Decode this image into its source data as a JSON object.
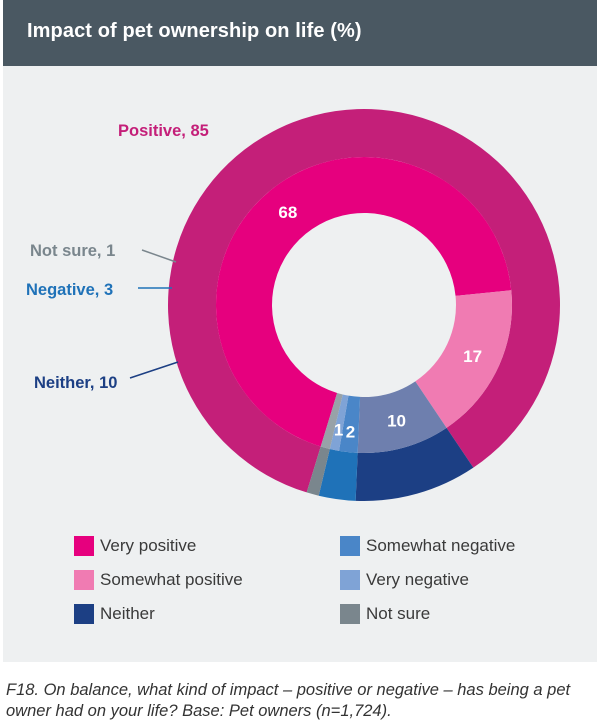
{
  "header": {
    "title": "Impact of pet ownership on life (%)"
  },
  "chart_data": {
    "type": "pie",
    "title": "Impact of pet ownership on life (%)",
    "outer_ring": [
      {
        "label": "Positive, 85",
        "name": "Positive",
        "value": 85,
        "color": "#c41f79"
      },
      {
        "label": "Neither, 10",
        "name": "Neither",
        "value": 10,
        "color": "#1c3f84"
      },
      {
        "label": "Negative, 3",
        "name": "Negative",
        "value": 3,
        "color": "#1f72b8"
      },
      {
        "label": "Not sure, 1",
        "name": "Not sure",
        "value": 1,
        "color": "#7a868d"
      }
    ],
    "inner_ring": [
      {
        "name": "Very positive",
        "value": 68,
        "label": "68",
        "color": "#e6007e"
      },
      {
        "name": "Somewhat positive",
        "value": 17,
        "label": "17",
        "color": "#f07bb2"
      },
      {
        "name": "Neither",
        "value": 10,
        "label": "10",
        "color": "#6e7fae"
      },
      {
        "name": "Somewhat negative",
        "value": 2,
        "label": "2",
        "color": "#4a86c8"
      },
      {
        "name": "Very negative",
        "value": 1,
        "label": "1",
        "color": "#7fa3d6"
      },
      {
        "name": "Not sure",
        "value": 1,
        "label": "",
        "color": "#98a2a8"
      }
    ],
    "label_colors": {
      "Positive": "#c41f79",
      "Neither": "#1c3f84",
      "Negative": "#1f72b8",
      "Not sure": "#7a868d"
    }
  },
  "legend": [
    {
      "label": "Very positive",
      "color": "#e6007e"
    },
    {
      "label": "Somewhat positive",
      "color": "#f07bb2"
    },
    {
      "label": "Neither",
      "color": "#1c3f84"
    },
    {
      "label": "Somewhat negative",
      "color": "#4a86c8"
    },
    {
      "label": "Very negative",
      "color": "#7fa3d6"
    },
    {
      "label": "Not sure",
      "color": "#7a868d"
    }
  ],
  "caption": "F18. On balance, what kind of impact – positive or negative – has being a pet owner had on your life? Base: Pet owners (n=1,724)."
}
